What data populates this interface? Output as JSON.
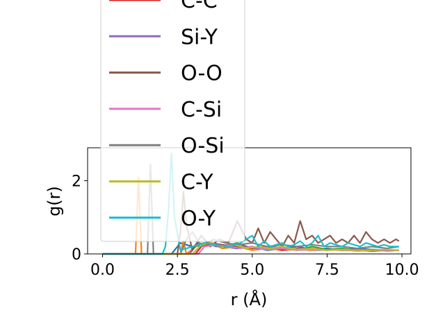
{
  "chart_data": {
    "type": "line",
    "xlabel": "r (Å)",
    "ylabel": "g(r)",
    "xlim": [
      -0.5,
      10.3
    ],
    "ylim": [
      0,
      2.9
    ],
    "xticks": [
      "0.0",
      "2.5",
      "5.0",
      "7.5",
      "10.0"
    ],
    "yticks": [
      "0",
      "2"
    ],
    "legend_placement": "upper-left",
    "series": [
      {
        "name": "",
        "color": "#1f77b4",
        "x": [
          0,
          1,
          2,
          2.3,
          2.6,
          3,
          3.5,
          4,
          4.5,
          5,
          5.5,
          6,
          6.5,
          7,
          7.5,
          8,
          8.5,
          9,
          9.5,
          9.9
        ],
        "y": [
          0,
          0,
          0,
          0,
          0.3,
          0.2,
          0.25,
          0.2,
          0.15,
          0.2,
          0.1,
          0.15,
          0.2,
          0.12,
          0.15,
          0.1,
          0.15,
          0.12,
          0.1,
          0.1
        ]
      },
      {
        "name": "",
        "color": "#ff7f0e",
        "x": [
          0,
          1.1,
          1.2,
          1.3,
          1.6,
          2.0,
          2.6,
          2.7,
          2.8,
          3.2,
          3.6,
          4,
          4.5,
          5,
          5.5,
          6,
          6.5,
          7,
          7.5,
          8,
          8.5,
          9,
          9.5,
          9.9
        ],
        "y": [
          0,
          0,
          2.1,
          0,
          0,
          0,
          0,
          0.35,
          0,
          0.25,
          0.3,
          0.15,
          0.2,
          0.1,
          0.15,
          0.1,
          0.12,
          0.1,
          0.12,
          0.1,
          0.1,
          0.12,
          0.08,
          0.1
        ]
      },
      {
        "name": "",
        "color": "#2ca02c",
        "x": [
          0,
          2.9,
          3.0,
          3.2,
          3.5,
          4,
          4.5,
          5,
          5.5,
          6,
          6.5,
          7,
          7.5,
          8,
          8.5,
          9,
          9.5,
          9.9
        ],
        "y": [
          0,
          0,
          0.1,
          0.3,
          0.25,
          0.2,
          0.3,
          0.15,
          0.2,
          0.15,
          0.1,
          0.2,
          0.12,
          0.15,
          0.1,
          0.12,
          0.1,
          0.1
        ]
      },
      {
        "name": "C-C",
        "color": "#d62728",
        "x": [
          0,
          3.1,
          3.3,
          3.6,
          4,
          4.5,
          5,
          5.5,
          6,
          6.5,
          7,
          7.5,
          8,
          8.5,
          9,
          9.5,
          9.9
        ],
        "y": [
          0,
          0,
          0.2,
          0.3,
          0.25,
          0.2,
          0.15,
          0.2,
          0.1,
          0.15,
          0.12,
          0.1,
          0.12,
          0.1,
          0.08,
          0.1,
          0.1
        ]
      },
      {
        "name": "Si-Y",
        "color": "#9467bd",
        "x": [
          0,
          2.9,
          3.1,
          3.4,
          3.8,
          4.2,
          4.7,
          5.2,
          5.7,
          6.2,
          6.7,
          7.2,
          7.7,
          8.2,
          8.7,
          9.2,
          9.7,
          9.9
        ],
        "y": [
          0,
          0,
          0.25,
          0.3,
          0.2,
          0.25,
          0.2,
          0.15,
          0.2,
          0.12,
          0.15,
          0.1,
          0.12,
          0.1,
          0.12,
          0.1,
          0.1,
          0.1
        ]
      },
      {
        "name": "O-O",
        "color": "#8c564b",
        "x": [
          0,
          2.5,
          2.6,
          2.7,
          2.8,
          3.0,
          3.3,
          3.6,
          3.9,
          4.2,
          4.5,
          4.8,
          5.0,
          5.2,
          5.4,
          5.6,
          5.8,
          6.0,
          6.2,
          6.4,
          6.6,
          6.8,
          7.0,
          7.2,
          7.4,
          7.6,
          7.8,
          8.0,
          8.2,
          8.4,
          8.6,
          8.8,
          9.0,
          9.2,
          9.4,
          9.6,
          9.8,
          9.9
        ],
        "y": [
          0,
          0,
          0.6,
          1.7,
          0.8,
          0.1,
          0.5,
          0.2,
          0.4,
          0.3,
          0.9,
          0.4,
          0.3,
          0.7,
          0.3,
          0.6,
          0.4,
          0.2,
          0.5,
          0.3,
          0.9,
          0.4,
          0.5,
          0.3,
          0.4,
          0.5,
          0.3,
          0.4,
          0.3,
          0.5,
          0.3,
          0.6,
          0.4,
          0.3,
          0.4,
          0.3,
          0.4,
          0.35
        ]
      },
      {
        "name": "C-Si",
        "color": "#e377c2",
        "x": [
          0,
          3.2,
          3.4,
          3.8,
          4.2,
          4.6,
          5,
          5.5,
          6,
          6.5,
          7,
          7.5,
          8,
          8.5,
          9,
          9.5,
          9.9
        ],
        "y": [
          0,
          0,
          0.2,
          0.25,
          0.2,
          0.15,
          0.2,
          0.12,
          0.15,
          0.1,
          0.12,
          0.1,
          0.12,
          0.08,
          0.1,
          0.1,
          0.1
        ]
      },
      {
        "name": "O-Si",
        "color": "#7f7f7f",
        "x": [
          0,
          1.5,
          1.6,
          1.7,
          2.0,
          2.6,
          2.8,
          3.0,
          3.3,
          3.7,
          4.1,
          4.5,
          5,
          5.5,
          6,
          6.5,
          7,
          7.5,
          8,
          8.5,
          9,
          9.5,
          9.9
        ],
        "y": [
          0,
          0,
          2.45,
          0,
          0,
          0,
          0.4,
          0.6,
          0.2,
          0.4,
          0.3,
          0.25,
          0.3,
          0.2,
          0.25,
          0.2,
          0.25,
          0.2,
          0.2,
          0.15,
          0.2,
          0.15,
          0.2
        ]
      },
      {
        "name": "C-Y",
        "color": "#bcbd22",
        "x": [
          0,
          3.0,
          3.3,
          3.6,
          4,
          4.4,
          4.8,
          5.2,
          5.6,
          6,
          6.5,
          7,
          7.5,
          8,
          8.5,
          9,
          9.5,
          9.9
        ],
        "y": [
          0,
          0,
          0.25,
          0.3,
          0.2,
          0.25,
          0.15,
          0.2,
          0.15,
          0.2,
          0.12,
          0.15,
          0.1,
          0.12,
          0.1,
          0.1,
          0.12,
          0.1
        ]
      },
      {
        "name": "O-Y",
        "color": "#17becf",
        "x": [
          0,
          2.0,
          2.1,
          2.2,
          2.3,
          2.4,
          2.6,
          3.0,
          3.4,
          3.8,
          4.2,
          4.6,
          5.0,
          5.2,
          5.4,
          5.6,
          5.8,
          6.0,
          6.2,
          6.4,
          6.6,
          6.8,
          7.0,
          7.2,
          7.4,
          7.6,
          7.8,
          8.0,
          8.2,
          8.4,
          8.6,
          8.8,
          9.0,
          9.2,
          9.4,
          9.6,
          9.9
        ],
        "y": [
          0,
          0,
          0.2,
          1.2,
          2.75,
          1.0,
          0.1,
          0.2,
          0.3,
          0.25,
          0.2,
          0.3,
          0.5,
          0.2,
          0.35,
          0.2,
          0.25,
          0.3,
          0.2,
          0.25,
          0.35,
          0.2,
          0.3,
          0.5,
          0.2,
          0.3,
          0.25,
          0.2,
          0.3,
          0.25,
          0.2,
          0.3,
          0.25,
          0.2,
          0.25,
          0.2,
          0.2
        ]
      }
    ]
  }
}
